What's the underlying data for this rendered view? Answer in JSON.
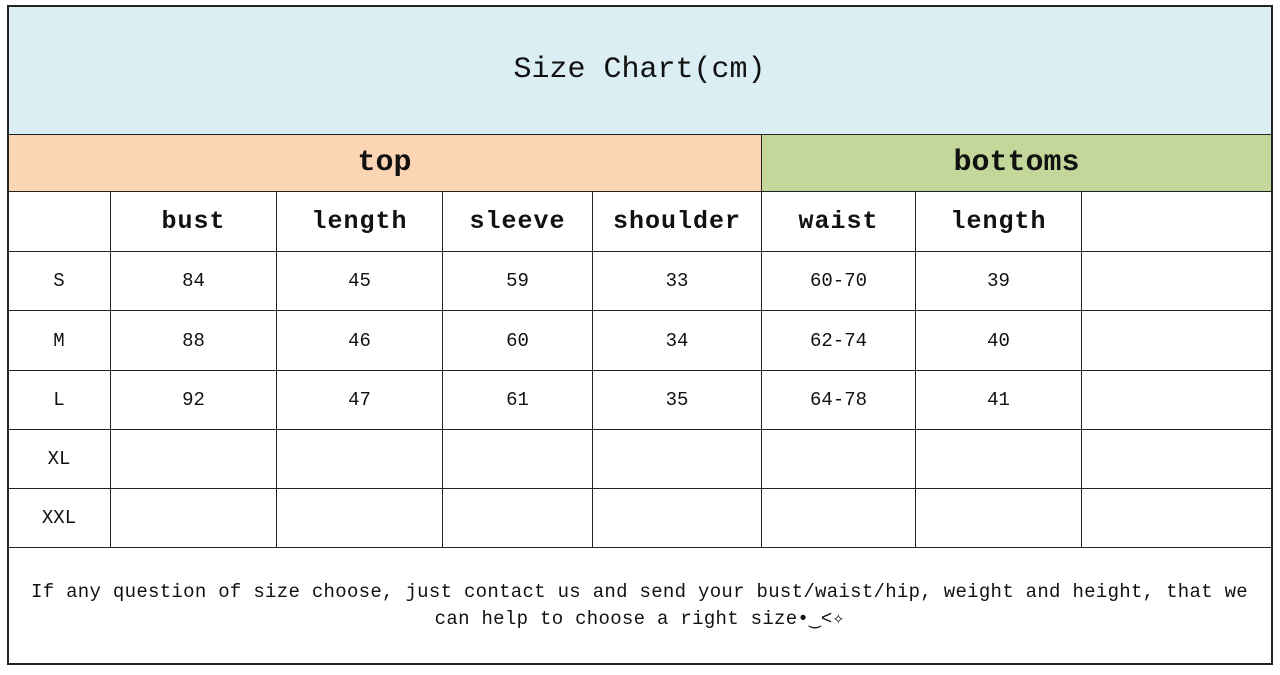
{
  "title": "Size Chart(cm)",
  "groups": [
    "top",
    "bottoms"
  ],
  "header": [
    "bust",
    "length",
    "sleeve",
    "shoulder",
    "waist",
    "length"
  ],
  "rows": [
    {
      "size": "S",
      "values": [
        84,
        45,
        59,
        33,
        "60-70",
        39
      ]
    },
    {
      "size": "M",
      "values": [
        88,
        46,
        60,
        34,
        "62-74",
        40
      ]
    },
    {
      "size": "L",
      "values": [
        92,
        47,
        61,
        35,
        "64-78",
        41
      ]
    },
    {
      "size": "XL",
      "values": []
    },
    {
      "size": "XXL",
      "values": []
    }
  ],
  "note": "If any question of size choose, just contact us and send your bust/waist/hip, weight and height, that we can help to choose a right size•‿<✧"
}
